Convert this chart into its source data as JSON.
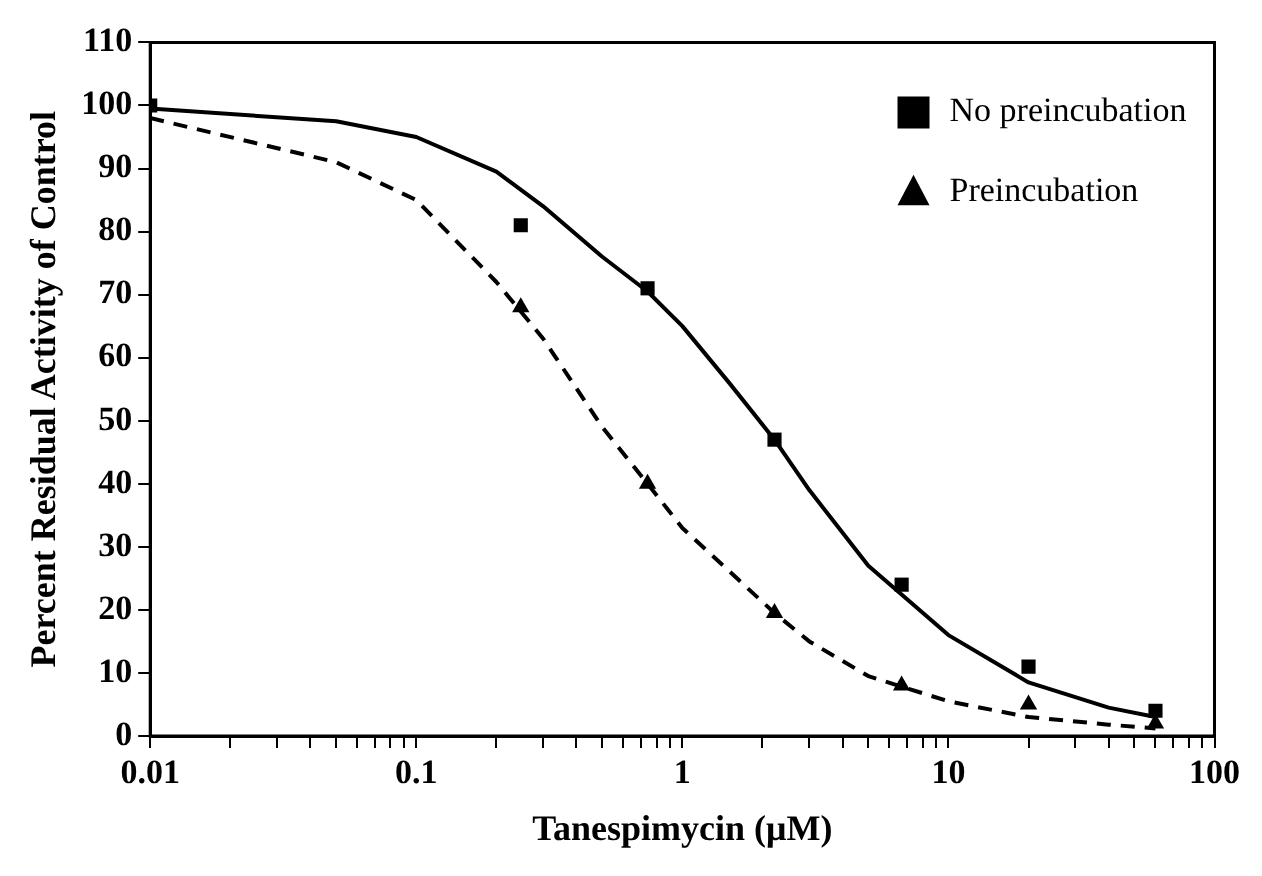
{
  "chart_data": {
    "type": "scatter",
    "xlabel": "Tanespimycin (μM)",
    "ylabel": "Percent Residual Activity of Control",
    "log": "x",
    "xlim": [
      0.01,
      100
    ],
    "xticks": [
      0.01,
      {
        "value": 0.02,
        "label": null
      },
      {
        "value": 0.03,
        "label": null
      },
      {
        "value": 0.04,
        "label": null
      },
      {
        "value": 0.05,
        "label": null
      },
      {
        "value": 0.06,
        "label": null
      },
      {
        "value": 0.07,
        "label": null
      },
      {
        "value": 0.08,
        "label": null
      },
      {
        "value": 0.09,
        "label": null
      },
      0.1,
      {
        "value": 0.2,
        "label": null
      },
      {
        "value": 0.3,
        "label": null
      },
      {
        "value": 0.4,
        "label": null
      },
      {
        "value": 0.5,
        "label": null
      },
      {
        "value": 0.6,
        "label": null
      },
      {
        "value": 0.7,
        "label": null
      },
      {
        "value": 0.8,
        "label": null
      },
      {
        "value": 0.9,
        "label": null
      },
      1,
      {
        "value": 2,
        "label": null
      },
      {
        "value": 3,
        "label": null
      },
      {
        "value": 4,
        "label": null
      },
      {
        "value": 5,
        "label": null
      },
      {
        "value": 6,
        "label": null
      },
      {
        "value": 7,
        "label": null
      },
      {
        "value": 8,
        "label": null
      },
      {
        "value": 9,
        "label": null
      },
      10,
      {
        "value": 20,
        "label": null
      },
      {
        "value": 30,
        "label": null
      },
      {
        "value": 40,
        "label": null
      },
      {
        "value": 50,
        "label": null
      },
      {
        "value": 60,
        "label": null
      },
      {
        "value": 70,
        "label": null
      },
      {
        "value": 80,
        "label": null
      },
      {
        "value": 90,
        "label": null
      },
      100
    ],
    "ylim": [
      0,
      110
    ],
    "yticks": [
      0,
      10,
      20,
      30,
      40,
      50,
      60,
      70,
      80,
      90,
      100,
      110
    ],
    "grid": false,
    "legend": "top right",
    "series": [
      {
        "name": "No preincubation",
        "color": "#000000",
        "marker": "square",
        "x": [
          0.01,
          0.247,
          0.74,
          2.22,
          6.67,
          20,
          60
        ],
        "values": [
          100,
          81,
          71,
          47,
          24,
          11,
          4
        ]
      },
      {
        "name": "Preincubation",
        "color": "#000000",
        "marker": "triangle",
        "x": [
          0.247,
          0.74,
          2.22,
          6.67,
          20,
          60
        ],
        "values": [
          68,
          40,
          19.5,
          8,
          5,
          2
        ]
      },
      {
        "type": "line",
        "color": "#000000",
        "marker": "none",
        "line_style": "solid",
        "x": [
          0.01,
          0.05,
          0.1,
          0.2,
          0.3,
          0.5,
          0.74,
          1,
          1.5,
          2.22,
          3,
          5,
          10,
          20,
          40,
          60
        ],
        "values": [
          99.5,
          97.5,
          95,
          89.5,
          84,
          76,
          70.5,
          65,
          56,
          47,
          39,
          27,
          16,
          8.5,
          4.5,
          3
        ]
      },
      {
        "type": "line",
        "color": "#000000",
        "marker": "none",
        "line_style": "dashed",
        "x": [
          0.01,
          0.05,
          0.1,
          0.2,
          0.3,
          0.5,
          0.74,
          1,
          2.22,
          3,
          5,
          10,
          20,
          40,
          60
        ],
        "values": [
          98,
          91,
          85,
          72,
          63,
          49,
          40,
          33,
          19.5,
          15,
          9.5,
          5.5,
          3,
          1.8,
          1.2
        ]
      }
    ]
  }
}
